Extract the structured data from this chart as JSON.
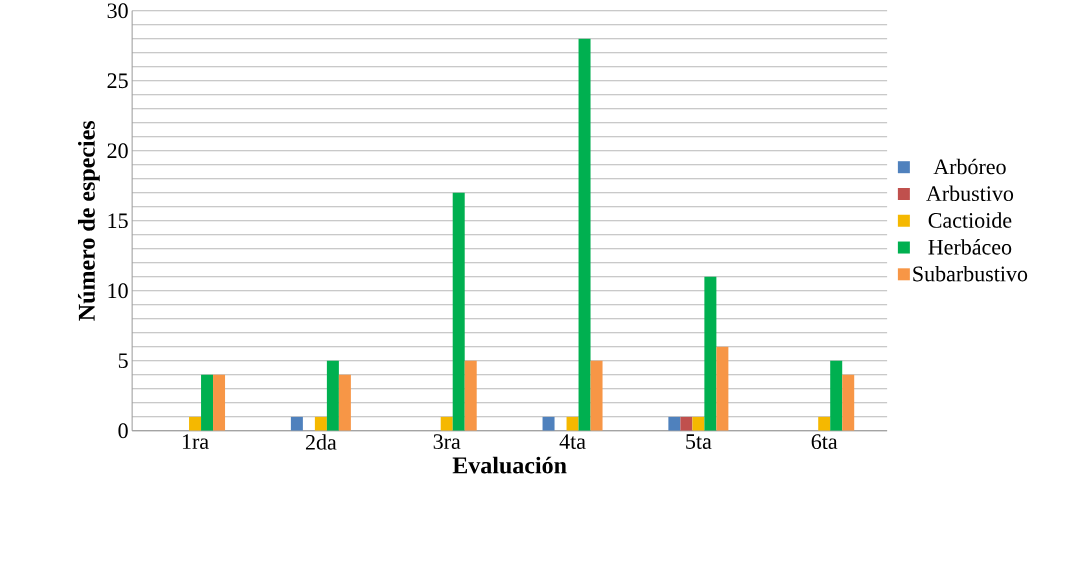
{
  "chart_data": {
    "type": "bar",
    "xlabel": "Evaluación",
    "ylabel": "Número de especies",
    "categories": [
      "1ra",
      "2da",
      "3ra",
      "4ta",
      "5ta",
      "6ta"
    ],
    "series": [
      {
        "name": "Arbóreo",
        "color": "#4f81bd",
        "values": [
          0,
          1,
          0,
          1,
          1,
          0
        ]
      },
      {
        "name": "Arbustivo",
        "color": "#c0504d",
        "values": [
          0,
          0,
          0,
          0,
          1,
          0
        ]
      },
      {
        "name": "Cactioide",
        "color": "#f5b800",
        "values": [
          1,
          1,
          1,
          1,
          1,
          1
        ]
      },
      {
        "name": "Herbáceo",
        "color": "#00b050",
        "values": [
          4,
          5,
          17,
          28,
          11,
          5
        ]
      },
      {
        "name": "Subarbustivo",
        "color": "#f79646",
        "values": [
          4,
          4,
          5,
          5,
          6,
          4
        ]
      }
    ],
    "ylim": [
      0,
      30
    ],
    "yticks": [
      0,
      5,
      10,
      15,
      20,
      25,
      30
    ],
    "grid": "y",
    "legend": "right"
  }
}
